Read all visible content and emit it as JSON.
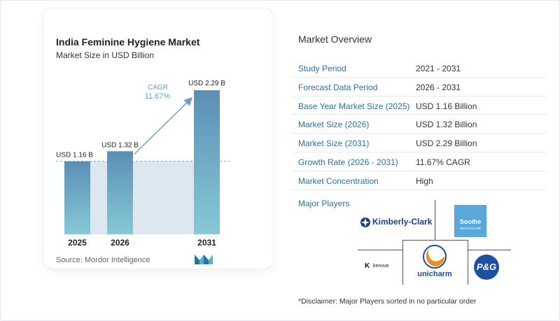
{
  "chart": {
    "title": "India Feminine Hygiene Market",
    "subtitle": "Market Size in USD Billion",
    "source": "Source:  Mordor Intelligence",
    "cagr_label": "CAGR",
    "cagr_value": "11.67%"
  },
  "chart_data": {
    "type": "bar",
    "categories": [
      "2025",
      "2026",
      "2031"
    ],
    "values": [
      1.16,
      1.32,
      2.29
    ],
    "data_labels": [
      "USD 1.16 B",
      "USD 1.32 B",
      "USD 2.29 B"
    ],
    "title": "India Feminine Hygiene Market",
    "subtitle": "Market Size in USD Billion",
    "ylim": [
      0,
      2.29
    ],
    "grid": false,
    "colors": {
      "bar_top": "#5b8fb5",
      "bar_bottom": "#86c9d6",
      "shade": "#dde7f0",
      "arrow": "#6b9ec2"
    }
  },
  "overview": {
    "title": "Market Overview",
    "rows": [
      {
        "label": "Study Period",
        "value": "2021 - 2031"
      },
      {
        "label": "Forecast Data Period",
        "value": "2026 - 2031"
      },
      {
        "label": "Base Year Market Size (2025)",
        "value": "USD 1.16 Billion"
      },
      {
        "label": "Market Size (2026)",
        "value": "USD 1.32 Billion"
      },
      {
        "label": "Market Size (2031)",
        "value": "USD 2.29 Billion"
      },
      {
        "label": "Growth Rate (2026 - 2031)",
        "value": "11.67% CAGR"
      },
      {
        "label": "Market Concentration",
        "value": "High"
      }
    ]
  },
  "players": {
    "title": "Major Players",
    "kimberly_clark": "Kimberly-Clark",
    "soothe": "Soothe",
    "soothe_sub": "HEALTHCARE",
    "kenvue": "kenvue",
    "unicharm": "unicharm",
    "pg": "P&G"
  },
  "disclaimer": "*Disclaimer: Major Players sorted in no particular order"
}
